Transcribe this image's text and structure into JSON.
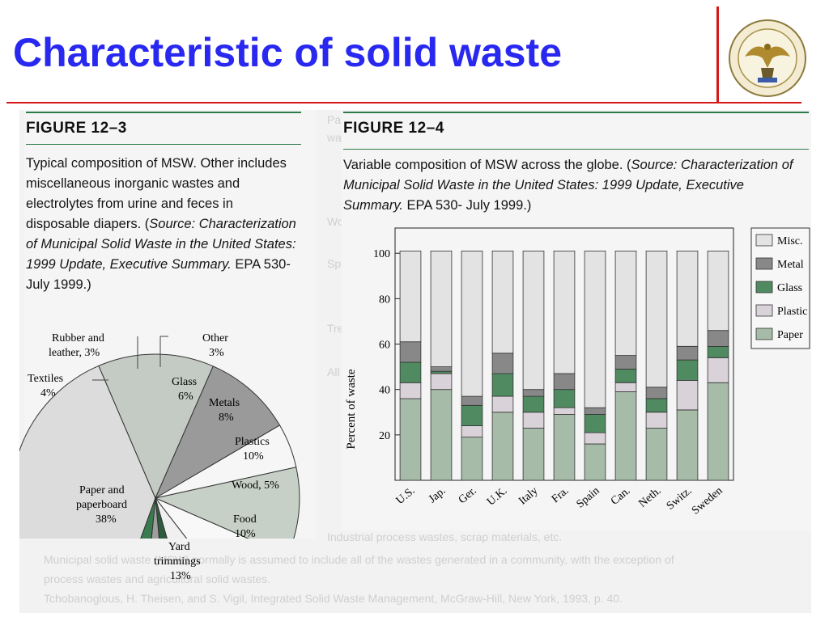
{
  "slide": {
    "title": "Characteristic of  solid waste"
  },
  "figure_left": {
    "heading": "FIGURE 12–3",
    "caption_plain1": "Typical composition of MSW. Other includes miscellaneous inorganic wastes and electrolytes from urine and feces in disposable diapers. (",
    "caption_italic1": "Source: Characterization of Municipal Solid Waste in the United States: 1999 Update, Executive Summary.",
    "caption_plain2": " EPA 530-July 1999.)"
  },
  "figure_right": {
    "heading": "FIGURE 12–4",
    "caption_plain1": "Variable composition of MSW across the globe. (",
    "caption_italic1": "Source: Characterization of Municipal Solid Waste in the United States: 1999 Update, Executive Summary.",
    "caption_plain2": " EPA 530- July 1999.)"
  },
  "chart_data": [
    {
      "type": "pie",
      "title": "",
      "slices": [
        {
          "label": "Paper and paperboard",
          "value": 38,
          "display": "38%",
          "color": "#dcdcdc"
        },
        {
          "label": "Yard trimmings",
          "value": 13,
          "display": "13%",
          "color": "#c4cbc4"
        },
        {
          "label": "Food",
          "value": 10,
          "display": "10%",
          "color": "#9a9a9a"
        },
        {
          "label": "Wood",
          "value": 5,
          "display": "5%",
          "color": "#f6f6f6"
        },
        {
          "label": "Plastics",
          "value": 10,
          "display": "10%",
          "color": "#c6d0c6"
        },
        {
          "label": "Metals",
          "value": 8,
          "display": "8%",
          "color": "#f8f8f8"
        },
        {
          "label": "Glass",
          "value": 6,
          "display": "6%",
          "color": "#f0f0f0"
        },
        {
          "label": "Other",
          "value": 3,
          "display": "3%",
          "color": "#2e5a3e"
        },
        {
          "label": "Rubber and leather",
          "value": 3,
          "display": "3%",
          "color": "#9e9e9e"
        },
        {
          "label": "Textiles",
          "value": 4,
          "display": "4%",
          "color": "#3a7a50"
        }
      ],
      "labels_text": {
        "paper": [
          "Paper and",
          "paperboard",
          "38%"
        ],
        "yard": [
          "Yard",
          "trimmings",
          "13%"
        ],
        "food": [
          "Food",
          "10%"
        ],
        "wood": [
          "Wood, 5%"
        ],
        "plastics": [
          "Plastics",
          "10%"
        ],
        "metals": [
          "Metals",
          "8%"
        ],
        "glass": [
          "Glass",
          "6%"
        ],
        "other": [
          "Other",
          "3%"
        ],
        "rubber": [
          "Rubber and",
          "leather, 3%"
        ],
        "textiles": [
          "Textiles",
          "4%"
        ]
      }
    },
    {
      "type": "bar",
      "stacked": true,
      "title": "",
      "xlabel": "",
      "ylabel": "Percent of waste",
      "ylim": [
        0,
        100
      ],
      "yticks": [
        20,
        40,
        60,
        80,
        100
      ],
      "grid": false,
      "legend_position": "right",
      "categories": [
        "U.S.",
        "Jap.",
        "Ger.",
        "U.K.",
        "Italy",
        "Fra.",
        "Spain",
        "Can.",
        "Neth.",
        "Switz.",
        "Sweden"
      ],
      "series": [
        {
          "name": "Paper",
          "color": "#a7bba9",
          "values": [
            36,
            40,
            19,
            30,
            23,
            29,
            16,
            39,
            23,
            31,
            43
          ]
        },
        {
          "name": "Plastic",
          "color": "#d9d2d9",
          "values": [
            7,
            7,
            5,
            7,
            7,
            3,
            5,
            4,
            7,
            13,
            11
          ]
        },
        {
          "name": "Glass",
          "color": "#4f8a60",
          "values": [
            9,
            1,
            9,
            10,
            7,
            8,
            8,
            6,
            6,
            9,
            5
          ]
        },
        {
          "name": "Metal",
          "color": "#888888",
          "values": [
            9,
            2,
            4,
            9,
            3,
            7,
            3,
            6,
            5,
            6,
            7
          ]
        },
        {
          "name": "Misc.",
          "color": "#e3e3e3",
          "values": [
            40,
            51,
            64,
            45,
            61,
            54,
            69,
            46,
            60,
            42,
            35
          ]
        }
      ]
    }
  ]
}
